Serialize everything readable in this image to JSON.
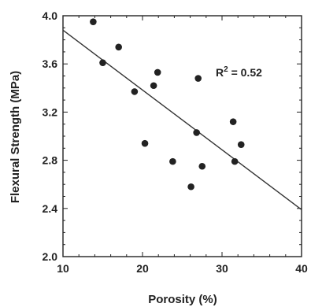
{
  "chart_data": {
    "type": "scatter",
    "title": "",
    "xlabel": "Porosity (%)",
    "ylabel": "Flexural Strength (MPa)",
    "xlim": [
      10,
      40
    ],
    "ylim": [
      2.0,
      4.0
    ],
    "x_ticks": [
      "10",
      "20",
      "30",
      "40"
    ],
    "y_ticks": [
      "2.0",
      "2.4",
      "2.8",
      "3.2",
      "3.6",
      "4.0"
    ],
    "grid": false,
    "legend": "none",
    "series": [
      {
        "points": [
          {
            "x": 13.8,
            "y": 3.95
          },
          {
            "x": 15.0,
            "y": 3.61
          },
          {
            "x": 17.0,
            "y": 3.74
          },
          {
            "x": 19.0,
            "y": 3.37
          },
          {
            "x": 20.3,
            "y": 2.94
          },
          {
            "x": 21.4,
            "y": 3.42
          },
          {
            "x": 21.9,
            "y": 3.53
          },
          {
            "x": 23.8,
            "y": 2.79
          },
          {
            "x": 26.1,
            "y": 2.58
          },
          {
            "x": 26.8,
            "y": 3.03
          },
          {
            "x": 27.0,
            "y": 3.48
          },
          {
            "x": 27.5,
            "y": 2.75
          },
          {
            "x": 31.4,
            "y": 3.12
          },
          {
            "x": 31.6,
            "y": 2.79
          },
          {
            "x": 32.4,
            "y": 2.93
          }
        ]
      }
    ],
    "fit_line": {
      "x": [
        10,
        40
      ],
      "y": [
        3.88,
        2.39
      ]
    },
    "annotation": {
      "base": "R",
      "sup": "2",
      "rest": " = 0.52"
    },
    "colors": {
      "points": "#222222",
      "line": "#333333",
      "axis": "#222222"
    }
  }
}
